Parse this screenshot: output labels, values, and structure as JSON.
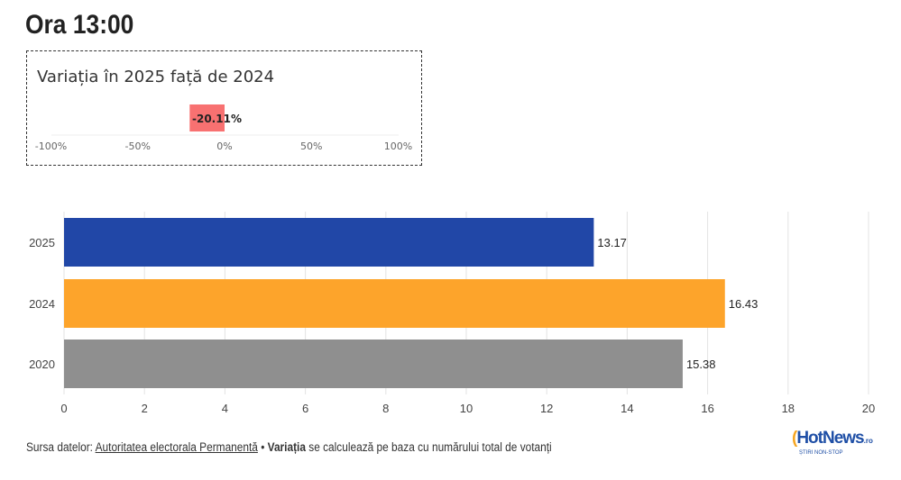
{
  "header": {
    "title": "Ora 13:00"
  },
  "variation": {
    "title": "Variația în 2025 față de 2024",
    "value": -20.11,
    "label": "-20.11%",
    "ticks": [
      "-100%",
      "-50%",
      "0%",
      "50%",
      "100%"
    ],
    "tick_values": [
      -100,
      -50,
      0,
      50,
      100
    ],
    "color": "#f87171"
  },
  "chart_data": {
    "type": "bar",
    "orientation": "horizontal",
    "categories": [
      "2025",
      "2024",
      "2020"
    ],
    "values": [
      13.17,
      16.43,
      15.38
    ],
    "labels": [
      "13.17",
      "16.43",
      "15.38"
    ],
    "colors": [
      "#2147a7",
      "#fda42b",
      "#8f8f8f"
    ],
    "xlim": [
      0,
      20
    ],
    "xticks": [
      "0",
      "2",
      "4",
      "6",
      "8",
      "10",
      "12",
      "14",
      "16",
      "18",
      "20"
    ],
    "grid": true
  },
  "footer": {
    "prefix": "Sursa datelor: ",
    "source": "Autoritatea electorala Permanentă",
    "sep": " • ",
    "bold": "Variația",
    "rest": " se calculează pe baza cu numărului total de votanți"
  },
  "logo": {
    "text": "HotNews",
    "suffix": ".ro",
    "tagline": "ȘTIRI NON-STOP"
  }
}
